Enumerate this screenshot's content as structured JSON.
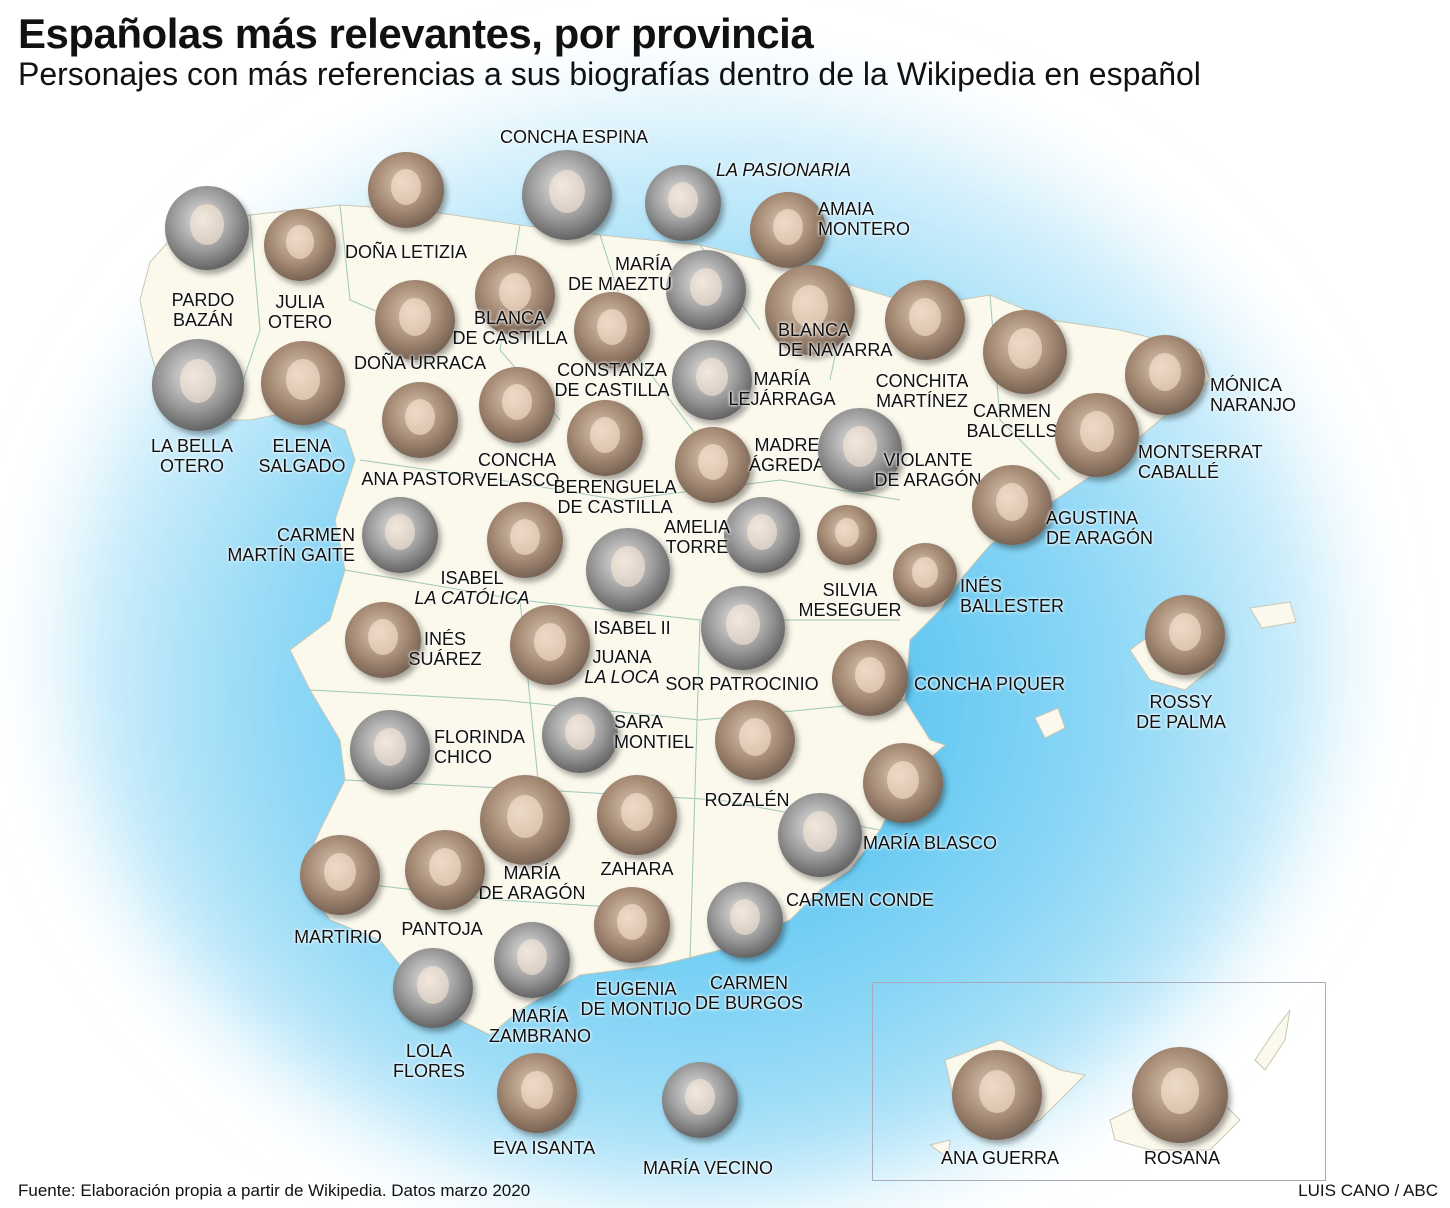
{
  "header": {
    "title": "Españolas más relevantes, por provincia",
    "subtitle": "Personajes con más referencias a sus biografías dentro de la Wikipedia en español"
  },
  "colors": {
    "sea_glow": "#5bc8f0",
    "land": "#fbf8ec",
    "borders": "#9cc9b8"
  },
  "people": [
    {
      "lines": [
        "PARDO",
        "BAZÁN"
      ]
    },
    {
      "lines": [
        "JULIA",
        "OTERO"
      ]
    },
    {
      "lines": [
        "DOÑA LETIZIA"
      ]
    },
    {
      "lines": [
        "CONCHA ESPINA"
      ]
    },
    {
      "lines": [
        "LA PASIONARIA"
      ]
    },
    {
      "lines": [
        "AMAIA",
        "MONTERO"
      ]
    },
    {
      "lines": [
        "BLANCA",
        "DE CASTILLA"
      ]
    },
    {
      "lines": [
        "MARÍA",
        "DE MAEZTU"
      ]
    },
    {
      "lines": [
        "DOÑA URRACA"
      ]
    },
    {
      "lines": [
        "CONSTANZA",
        "DE CASTILLA"
      ]
    },
    {
      "lines": [
        "BLANCA",
        "DE NAVARRA"
      ]
    },
    {
      "lines": [
        "CONCHITA",
        "MARTÍNEZ"
      ]
    },
    {
      "lines": [
        "CARMEN",
        "BALCELLS"
      ]
    },
    {
      "lines": [
        "MÓNICA",
        "NARANJO"
      ]
    },
    {
      "lines": [
        "LA BELLA",
        "OTERO"
      ]
    },
    {
      "lines": [
        "ELENA",
        "SALGADO"
      ]
    },
    {
      "lines": [
        "MARÍA",
        "LEJÁRRAGA"
      ]
    },
    {
      "lines": [
        "ANA PASTOR"
      ]
    },
    {
      "lines": [
        "CONCHA",
        "VELASCO"
      ]
    },
    {
      "lines": [
        "BERENGUELA",
        "DE CASTILLA"
      ]
    },
    {
      "lines": [
        "MADRE",
        "ÁGREDA"
      ]
    },
    {
      "lines": [
        "VIOLANTE",
        "DE ARAGÓN"
      ]
    },
    {
      "lines": [
        "MONTSERRAT",
        "CABALLÉ"
      ]
    },
    {
      "lines": [
        "AGUSTINA",
        "DE ARAGÓN"
      ]
    },
    {
      "lines": [
        "CARMEN",
        "MARTÍN GAITE"
      ]
    },
    {
      "lines": [
        "ISABEL",
        "LA CATÓLICA"
      ]
    },
    {
      "lines": [
        "ISABEL II"
      ]
    },
    {
      "lines": [
        "AMELIA",
        "TORRE"
      ]
    },
    {
      "lines": [
        "SILVIA",
        "MESEGUER"
      ]
    },
    {
      "lines": [
        "INÉS",
        "BALLESTER"
      ]
    },
    {
      "lines": [
        "ROSSY",
        "DE PALMA"
      ]
    },
    {
      "lines": [
        "INÉS",
        "SUÁREZ"
      ]
    },
    {
      "lines": [
        "JUANA",
        "LA LOCA"
      ]
    },
    {
      "lines": [
        "SOR PATROCINIO"
      ]
    },
    {
      "lines": [
        "CONCHA PIQUER"
      ]
    },
    {
      "lines": [
        "SARA",
        "MONTIEL"
      ]
    },
    {
      "lines": [
        "FLORINDA",
        "CHICO"
      ]
    },
    {
      "lines": [
        "ROZALÉN"
      ]
    },
    {
      "lines": [
        "MARÍA BLASCO"
      ]
    },
    {
      "lines": [
        "MARÍA",
        "DE ARAGÓN"
      ]
    },
    {
      "lines": [
        "ZAHARA"
      ]
    },
    {
      "lines": [
        "CARMEN CONDE"
      ]
    },
    {
      "lines": [
        "MARTIRIO"
      ]
    },
    {
      "lines": [
        "PANTOJA"
      ]
    },
    {
      "lines": [
        "EUGENIA",
        "DE MONTIJO"
      ]
    },
    {
      "lines": [
        "CARMEN",
        "DE BURGOS"
      ]
    },
    {
      "lines": [
        "MARÍA",
        "ZAMBRANO"
      ]
    },
    {
      "lines": [
        "LOLA",
        "FLORES"
      ]
    },
    {
      "lines": [
        "EVA ISANTA"
      ]
    },
    {
      "lines": [
        "MARÍA VECINO"
      ]
    },
    {
      "lines": [
        "ANA GUERRA"
      ]
    },
    {
      "lines": [
        "ROSANA"
      ]
    }
  ],
  "footer": {
    "source": "Fuente: Elaboración propia a partir de Wikipedia. Datos marzo 2020",
    "credit": "LUIS CANO / ABC"
  }
}
